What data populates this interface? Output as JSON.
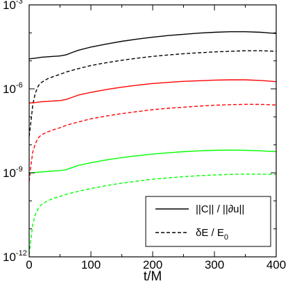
{
  "chart_data": {
    "type": "line",
    "xlabel": "t/M",
    "xlim": [
      0,
      400
    ],
    "ylim": [
      1e-12,
      0.001
    ],
    "yscale": "log",
    "x_ticks": [
      0,
      100,
      200,
      300,
      400
    ],
    "y_ticks": [
      {
        "base": "10",
        "exp": "-12",
        "value": 1e-12
      },
      {
        "base": "10",
        "exp": "-9",
        "value": 1e-09
      },
      {
        "base": "10",
        "exp": "-6",
        "value": 1e-06
      },
      {
        "base": "10",
        "exp": "-3",
        "value": 0.001
      }
    ],
    "legend": {
      "position": "bottom-right",
      "entries": [
        {
          "label": "||C|| / ||∂u||",
          "style": "solid"
        },
        {
          "label": "δE / E",
          "sub": "0",
          "style": "dashed"
        }
      ]
    },
    "colors": {
      "black": "#000000",
      "red": "#ff0000",
      "green": "#00ff00"
    },
    "series": [
      {
        "color": "black",
        "style": "solid",
        "points": [
          [
            0,
            1.18e-05
          ],
          [
            10,
            1.25e-05
          ],
          [
            20,
            1.35e-05
          ],
          [
            30,
            1.4e-05
          ],
          [
            40,
            1.45e-05
          ],
          [
            50,
            1.5e-05
          ],
          [
            60,
            1.65e-05
          ],
          [
            70,
            2e-05
          ],
          [
            80,
            2.4e-05
          ],
          [
            100,
            3.1e-05
          ],
          [
            125,
            4e-05
          ],
          [
            150,
            5e-05
          ],
          [
            175,
            6e-05
          ],
          [
            200,
            7e-05
          ],
          [
            225,
            8e-05
          ],
          [
            250,
            8.9e-05
          ],
          [
            275,
            9.8e-05
          ],
          [
            300,
            0.000105
          ],
          [
            325,
            0.00011
          ],
          [
            350,
            0.00011
          ],
          [
            375,
            0.000105
          ],
          [
            400,
            9.5e-05
          ]
        ]
      },
      {
        "color": "black",
        "style": "dashed",
        "points": [
          [
            0,
            2e-08
          ],
          [
            3,
            7e-08
          ],
          [
            6,
            2.8e-07
          ],
          [
            10,
            7e-07
          ],
          [
            15,
            1.3e-06
          ],
          [
            20,
            1.7e-06
          ],
          [
            30,
            2.3e-06
          ],
          [
            40,
            2.8e-06
          ],
          [
            50,
            3.3e-06
          ],
          [
            60,
            4e-06
          ],
          [
            80,
            5.3e-06
          ],
          [
            100,
            6.8e-06
          ],
          [
            125,
            8.6e-06
          ],
          [
            150,
            1.05e-05
          ],
          [
            175,
            1.25e-05
          ],
          [
            200,
            1.45e-05
          ],
          [
            225,
            1.62e-05
          ],
          [
            250,
            1.8e-05
          ],
          [
            275,
            1.95e-05
          ],
          [
            300,
            2.08e-05
          ],
          [
            325,
            2.2e-05
          ],
          [
            350,
            2.3e-05
          ],
          [
            375,
            2.3e-05
          ],
          [
            400,
            2.2e-05
          ]
        ]
      },
      {
        "color": "red",
        "style": "solid",
        "points": [
          [
            0,
            3.1e-07
          ],
          [
            10,
            3.25e-07
          ],
          [
            20,
            3.45e-07
          ],
          [
            30,
            3.55e-07
          ],
          [
            40,
            3.7e-07
          ],
          [
            50,
            3.8e-07
          ],
          [
            60,
            4.2e-07
          ],
          [
            70,
            5e-07
          ],
          [
            80,
            6e-07
          ],
          [
            100,
            7.5e-07
          ],
          [
            125,
            9.5e-07
          ],
          [
            150,
            1.15e-06
          ],
          [
            175,
            1.35e-06
          ],
          [
            200,
            1.55e-06
          ],
          [
            225,
            1.7e-06
          ],
          [
            250,
            1.85e-06
          ],
          [
            275,
            1.95e-06
          ],
          [
            300,
            2.05e-06
          ],
          [
            325,
            2.1e-06
          ],
          [
            350,
            2.1e-06
          ],
          [
            375,
            2e-06
          ],
          [
            400,
            1.8e-06
          ]
        ]
      },
      {
        "color": "red",
        "style": "dashed",
        "points": [
          [
            0,
            5e-10
          ],
          [
            3,
            2e-09
          ],
          [
            6,
            5.5e-09
          ],
          [
            10,
            1.1e-08
          ],
          [
            15,
            1.8e-08
          ],
          [
            20,
            2.3e-08
          ],
          [
            30,
            2.9e-08
          ],
          [
            40,
            3.5e-08
          ],
          [
            50,
            4.1e-08
          ],
          [
            60,
            5e-08
          ],
          [
            80,
            6.6e-08
          ],
          [
            100,
            8.5e-08
          ],
          [
            125,
            1.07e-07
          ],
          [
            150,
            1.3e-07
          ],
          [
            175,
            1.55e-07
          ],
          [
            200,
            1.8e-07
          ],
          [
            225,
            2.02e-07
          ],
          [
            250,
            2.22e-07
          ],
          [
            275,
            2.42e-07
          ],
          [
            300,
            2.6e-07
          ],
          [
            325,
            2.72e-07
          ],
          [
            350,
            2.8e-07
          ],
          [
            375,
            2.78e-07
          ],
          [
            400,
            2.65e-07
          ]
        ]
      },
      {
        "color": "green",
        "style": "solid",
        "points": [
          [
            0,
            9.8e-10
          ],
          [
            10,
            1.03e-09
          ],
          [
            20,
            1.08e-09
          ],
          [
            30,
            1.12e-09
          ],
          [
            40,
            1.17e-09
          ],
          [
            50,
            1.2e-09
          ],
          [
            60,
            1.3e-09
          ],
          [
            70,
            1.55e-09
          ],
          [
            80,
            1.85e-09
          ],
          [
            100,
            2.3e-09
          ],
          [
            125,
            2.9e-09
          ],
          [
            150,
            3.5e-09
          ],
          [
            175,
            4.1e-09
          ],
          [
            200,
            4.7e-09
          ],
          [
            225,
            5.2e-09
          ],
          [
            250,
            5.7e-09
          ],
          [
            275,
            6.1e-09
          ],
          [
            300,
            6.4e-09
          ],
          [
            325,
            6.5e-09
          ],
          [
            350,
            6.4e-09
          ],
          [
            375,
            6.1e-09
          ],
          [
            400,
            5.7e-09
          ]
        ]
      },
      {
        "color": "green",
        "style": "dashed",
        "points": [
          [
            0,
            1.2e-12
          ],
          [
            3,
            4.5e-12
          ],
          [
            6,
            1.5e-11
          ],
          [
            10,
            3.2e-11
          ],
          [
            15,
            5.5e-11
          ],
          [
            20,
            7.5e-11
          ],
          [
            30,
            1e-10
          ],
          [
            40,
            1.25e-10
          ],
          [
            50,
            1.45e-10
          ],
          [
            60,
            1.7e-10
          ],
          [
            80,
            2.2e-10
          ],
          [
            100,
            2.75e-10
          ],
          [
            125,
            3.5e-10
          ],
          [
            150,
            4.3e-10
          ],
          [
            175,
            5.1e-10
          ],
          [
            200,
            5.9e-10
          ],
          [
            225,
            6.6e-10
          ],
          [
            250,
            7.3e-10
          ],
          [
            275,
            7.9e-10
          ],
          [
            300,
            8.4e-10
          ],
          [
            325,
            8.8e-10
          ],
          [
            350,
            9e-10
          ],
          [
            375,
            9e-10
          ],
          [
            400,
            8.7e-10
          ]
        ]
      }
    ]
  }
}
